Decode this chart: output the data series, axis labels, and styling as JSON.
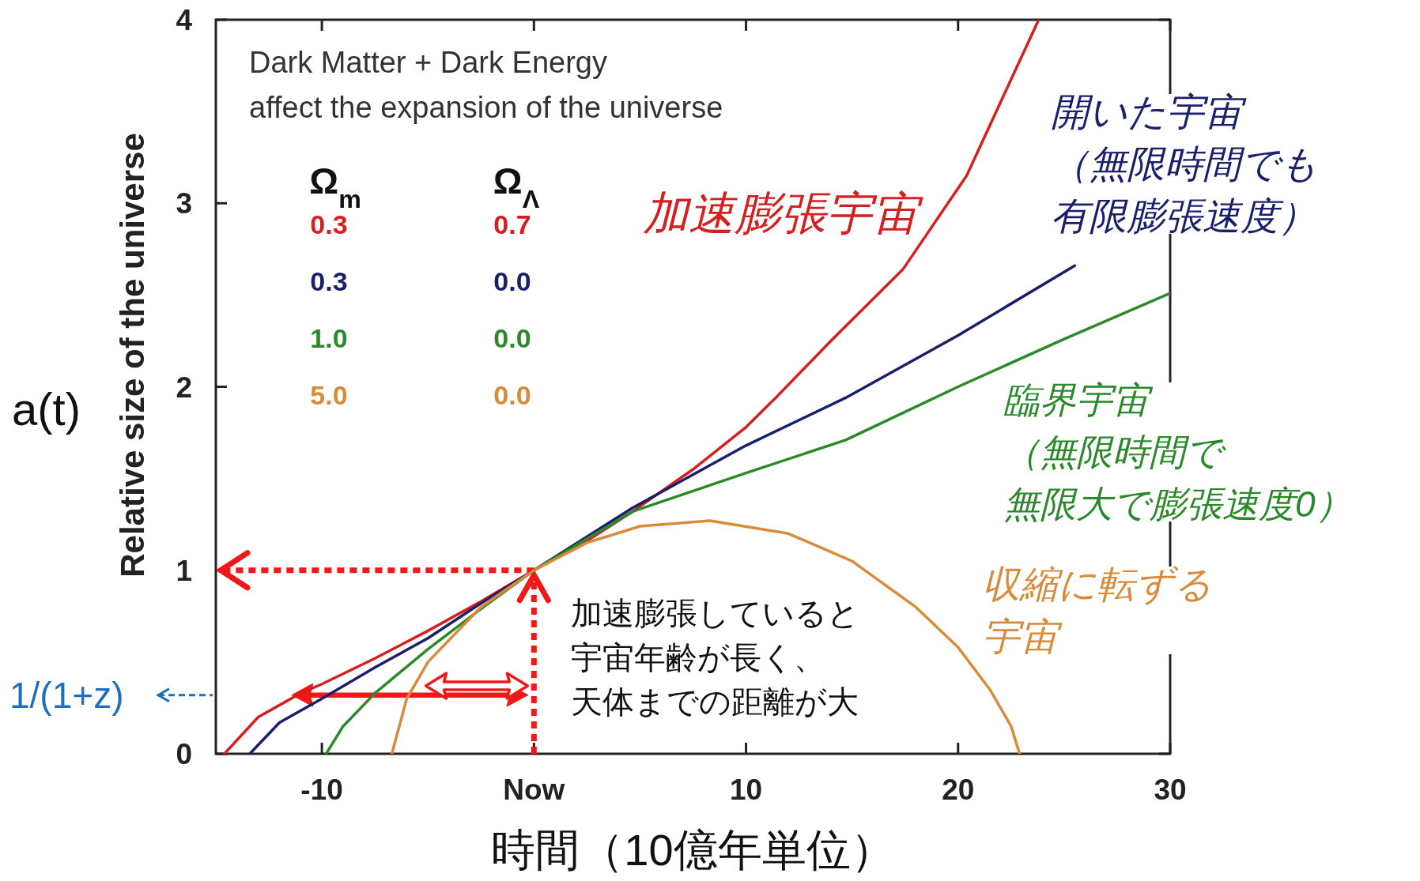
{
  "chart_data": {
    "type": "line",
    "xlabel": "時間（10億年単位）",
    "ylabel": "Relative size of the universe",
    "xlim": [
      -15,
      30
    ],
    "ylim": [
      0,
      4
    ],
    "xticks": [
      {
        "value": -10,
        "label": "-10"
      },
      {
        "value": 0,
        "label": "Now"
      },
      10,
      20,
      30
    ],
    "yticks": [
      0,
      1,
      2,
      3,
      4
    ],
    "series": [
      {
        "name": "加速膨張宇宙",
        "color": "#d42020",
        "x": [
          -14.6,
          -13,
          -11,
          -10,
          -7.5,
          -5,
          -2.5,
          0,
          2.5,
          4.65,
          7.5,
          10,
          11.4,
          14,
          17.4,
          20.4,
          22.4,
          23.8
        ],
        "values": [
          0,
          0.2,
          0.33,
          0.38,
          0.52,
          0.67,
          0.83,
          1,
          1.16,
          1.32,
          1.55,
          1.78,
          1.94,
          2.25,
          2.64,
          3.15,
          3.65,
          4
        ]
      },
      {
        "name": "開いた宇宙（無限時間でも有限膨張速度）",
        "color": "#1a1f6b",
        "x": [
          -13.4,
          -12,
          -10,
          -7.5,
          -5,
          -2.5,
          0,
          4.65,
          10,
          14.7,
          20,
          25.5
        ],
        "values": [
          0,
          0.17,
          0.3,
          0.47,
          0.63,
          0.82,
          1,
          1.34,
          1.68,
          1.94,
          2.28,
          2.66
        ]
      },
      {
        "name": "臨界宇宙（無限時間で無限大で膨張速度0）",
        "color": "#2a8a2a",
        "x": [
          -9.8,
          -9,
          -7.5,
          -5,
          -2.5,
          0,
          4.65,
          10,
          14.7,
          20,
          25,
          30
        ],
        "values": [
          0,
          0.15,
          0.33,
          0.57,
          0.79,
          1,
          1.32,
          1.53,
          1.71,
          2.0,
          2.26,
          2.51
        ]
      },
      {
        "name": "収縮に転ずる宇宙",
        "color": "#d98a3a",
        "x": [
          -6.7,
          -6,
          -5,
          -2.5,
          0,
          2.5,
          5,
          8.3,
          12,
          15,
          18,
          20,
          21.5,
          22.5,
          22.9
        ],
        "values": [
          0,
          0.3,
          0.5,
          0.8,
          1,
          1.15,
          1.24,
          1.27,
          1.2,
          1.05,
          0.8,
          0.58,
          0.35,
          0.15,
          0
        ]
      }
    ],
    "annotations": [
      "Dark Matter + Dark Energy\naffect the expansion of the universe",
      "Ω$_{m}$",
      "Ω$_{Λ}$",
      "0.3",
      "0.7",
      "0.3",
      "0.0",
      "1.0",
      "0.0",
      "5.0",
      "0.0",
      "加速膨張していると宇宙年齢が長く、天体までの距離が大",
      "a(t)",
      "1/(1+z)"
    ]
  }
}
